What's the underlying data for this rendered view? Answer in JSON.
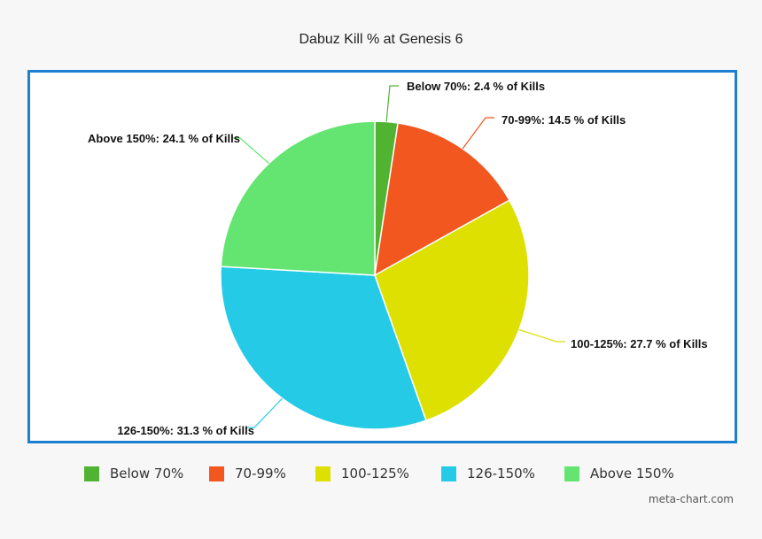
{
  "chart_data": {
    "type": "pie",
    "title": "Dabuz Kill % at Genesis 6",
    "categories": [
      "Below 70%",
      "70-99%",
      "100-125%",
      "126-150%",
      "Above 150%"
    ],
    "values": [
      2.4,
      14.5,
      27.7,
      31.3,
      24.1
    ],
    "colors": [
      "#50b432",
      "#f1571e",
      "#dde000",
      "#24cae6",
      "#64e572"
    ],
    "slice_labels": [
      "Below 70%: 2.4 % of Kills",
      "70-99%: 14.5 % of Kills",
      "100-125%: 27.7 % of Kills",
      "126-150%: 31.3 % of Kills",
      "Above 150%: 24.1 % of Kills"
    ],
    "legend": [
      "Below 70%",
      "70-99%",
      "100-125%",
      "126-150%",
      "Above 150%"
    ],
    "legend_position": "bottom"
  },
  "credit": "meta-chart.com"
}
